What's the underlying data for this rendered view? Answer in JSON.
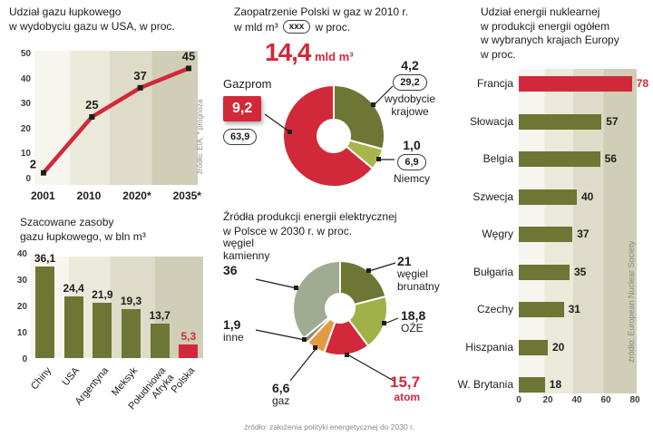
{
  "colors": {
    "red": "#d2293a",
    "olive": "#6d7634",
    "sage": "#a0ac92",
    "yellow_green": "#9fb148",
    "light_green": "#a9b54b",
    "orange": "#e39b42",
    "gray_green": "#87906d",
    "text": "#1d1d1b",
    "muted": "#8a8988"
  },
  "chart_data": [
    {
      "id": "shale-share-line",
      "type": "line",
      "title": "Udział gazu łupkowego\nw wydobyciu gazu w USA, w proc.",
      "x": [
        "2001",
        "2010",
        "2020*",
        "2035*"
      ],
      "values": [
        2,
        25,
        37,
        45
      ],
      "value_labels": [
        "2",
        "25",
        "37",
        "45"
      ],
      "ylim": [
        0,
        50
      ],
      "yticks": [
        "50",
        "40",
        "30",
        "20",
        "10",
        "0"
      ],
      "source": "źródło: EIA, * prognoza"
    },
    {
      "id": "shale-reserves-bar",
      "type": "bar",
      "title": "Szacowane zasoby\ngazu łupkowego, w bln m³",
      "categories": [
        "Chiny",
        "USA",
        "Argentyna",
        "Meksyk",
        "Południowa\nAfryka",
        "Polska"
      ],
      "values": [
        36.1,
        24.4,
        21.9,
        19.3,
        13.7,
        5.3
      ],
      "value_labels": [
        "36,1",
        "24,4",
        "21,9",
        "19,3",
        "13,7",
        "5,3"
      ],
      "highlight_index": 5,
      "ylim": [
        0,
        40
      ],
      "yticks": [
        "40",
        "30",
        "20",
        "10",
        "0"
      ]
    },
    {
      "id": "gas-supply-pie",
      "type": "pie",
      "title_line1": "Zaopatrzenie Polski w gaz w 2010 r.",
      "unit_label": "w mld m³",
      "badge": "xxx",
      "badge_suffix": "w proc.",
      "total": "14,4",
      "total_unit": "mld m³",
      "slices": [
        {
          "name": "wydobycie krajowe",
          "amount": "4,2",
          "percent": "29,2",
          "pct": 29.2,
          "color": "olive"
        },
        {
          "name": "Niemcy",
          "amount": "1,0",
          "percent": "6,9",
          "pct": 6.9,
          "color": "light_green"
        },
        {
          "name": "Gazprom",
          "amount": "9,2",
          "percent": "63,9",
          "pct": 63.9,
          "color": "red"
        }
      ]
    },
    {
      "id": "electricity-2030-pie",
      "type": "pie",
      "title": "Źródła produkcji energii elektrycznej\nw Polsce w 2030 r. w proc.",
      "slices": [
        {
          "name": "węgiel brunatny",
          "value": "21",
          "pct": 21,
          "color": "olive"
        },
        {
          "name": "OŹE",
          "value": "18,8",
          "pct": 18.8,
          "color": "yellow_green"
        },
        {
          "name": "atom",
          "value": "15,7",
          "pct": 15.7,
          "color": "red"
        },
        {
          "name": "gaz",
          "value": "6,6",
          "pct": 6.6,
          "color": "orange"
        },
        {
          "name": "inne",
          "value": "1,9",
          "pct": 1.9,
          "color": "gray_green"
        },
        {
          "name": "węgiel kamienny",
          "value": "36",
          "pct": 36,
          "color": "sage"
        }
      ],
      "source": "źródło: założenia polityki energetycznej do 2030 r."
    },
    {
      "id": "nuclear-share-bar",
      "type": "bar-horizontal",
      "title": "Udział energii nuklearnej\nw produkcji energii ogółem\nw wybranych krajach Europy\nw proc.",
      "categories": [
        "Francja",
        "Słowacja",
        "Belgia",
        "Szwecja",
        "Węgry",
        "Bułgaria",
        "Czechy",
        "Hiszpania",
        "W. Brytania"
      ],
      "values": [
        78,
        57,
        56,
        40,
        37,
        35,
        31,
        20,
        18
      ],
      "value_labels": [
        "78",
        "57",
        "56",
        "40",
        "37",
        "35",
        "31",
        "20",
        "18"
      ],
      "highlight_index": 0,
      "xlim": [
        0,
        80
      ],
      "xticks": [
        "0",
        "20",
        "40",
        "60",
        "80"
      ],
      "source": "źródło: European Nuclear Society"
    }
  ]
}
